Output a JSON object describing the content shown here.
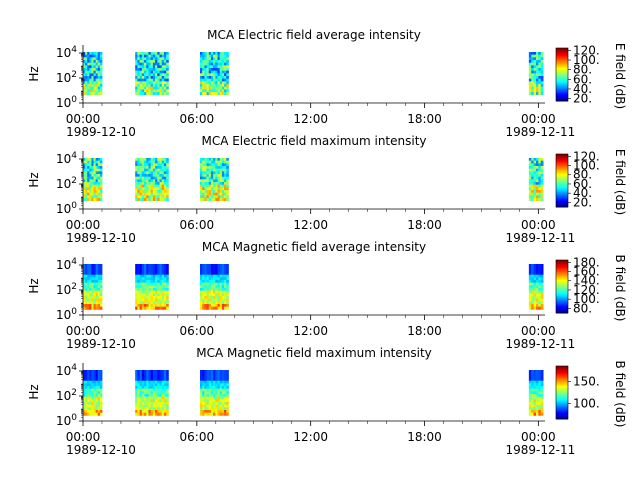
{
  "chart_data": [
    {
      "type": "heatmap",
      "title": "MCA  Electric field average intensity",
      "ylabel": "Hz",
      "colorbar_label": "E field (dB)",
      "y_scale": "log",
      "ylim": [
        1,
        30000
      ],
      "y_ticks": [
        "10^0",
        "10^2",
        "10^4"
      ],
      "clim": [
        15,
        125
      ],
      "colorbar_ticks": [
        20,
        40,
        60,
        80,
        100,
        120
      ],
      "colorbar_tick_labels": [
        "20.",
        "40.",
        "60.",
        "80.",
        "100.",
        "120."
      ],
      "x_ticks": [
        "00:00",
        "06:00",
        "12:00",
        "18:00",
        "00:00"
      ],
      "x_date_labels": [
        "1989-12-10",
        "1989-12-11"
      ],
      "blocks": [
        {
          "start": "00:00",
          "end": "01:00",
          "palette": "e_avg"
        },
        {
          "start": "02:45",
          "end": "04:30",
          "palette": "e_avg"
        },
        {
          "start": "06:10",
          "end": "07:40",
          "palette": "e_avg"
        },
        {
          "start": "23:30",
          "end": "24:15",
          "palette": "e_avg"
        }
      ]
    },
    {
      "type": "heatmap",
      "title": "MCA  Electric field maximum intensity",
      "ylabel": "Hz",
      "colorbar_label": "E field (dB)",
      "y_scale": "log",
      "ylim": [
        1,
        30000
      ],
      "y_ticks": [
        "10^0",
        "10^2",
        "10^4"
      ],
      "clim": [
        10,
        125
      ],
      "colorbar_ticks": [
        20,
        40,
        60,
        80,
        100,
        120
      ],
      "colorbar_tick_labels": [
        "20.",
        "40.",
        "60.",
        "80.",
        "100.",
        "120."
      ],
      "x_ticks": [
        "00:00",
        "06:00",
        "12:00",
        "18:00",
        "00:00"
      ],
      "x_date_labels": [
        "1989-12-10",
        "1989-12-11"
      ],
      "blocks": [
        {
          "start": "00:00",
          "end": "01:00",
          "palette": "e_max"
        },
        {
          "start": "02:45",
          "end": "04:30",
          "palette": "e_max"
        },
        {
          "start": "06:10",
          "end": "07:40",
          "palette": "e_max"
        },
        {
          "start": "23:30",
          "end": "24:15",
          "palette": "e_max"
        }
      ]
    },
    {
      "type": "heatmap",
      "title": "MCA  Magnetic field average intensity",
      "ylabel": "Hz",
      "colorbar_label": "B field (dB)",
      "y_scale": "log",
      "ylim": [
        1,
        30000
      ],
      "y_ticks": [
        "10^0",
        "10^2",
        "10^4"
      ],
      "clim": [
        70,
        185
      ],
      "colorbar_ticks": [
        80,
        100,
        120,
        140,
        160,
        180
      ],
      "colorbar_tick_labels": [
        "80.",
        "100.",
        "120.",
        "140.",
        "160.",
        "180."
      ],
      "x_ticks": [
        "00:00",
        "06:00",
        "12:00",
        "18:00",
        "00:00"
      ],
      "x_date_labels": [
        "1989-12-10",
        "1989-12-11"
      ],
      "blocks": [
        {
          "start": "00:00",
          "end": "01:00",
          "palette": "b"
        },
        {
          "start": "02:45",
          "end": "04:30",
          "palette": "b"
        },
        {
          "start": "06:10",
          "end": "07:40",
          "palette": "b"
        },
        {
          "start": "23:30",
          "end": "24:15",
          "palette": "b"
        }
      ]
    },
    {
      "type": "heatmap",
      "title": "MCA  Magnetic field maximum intensity",
      "ylabel": "Hz",
      "colorbar_label": "B field (dB)",
      "y_scale": "log",
      "ylim": [
        1,
        30000
      ],
      "y_ticks": [
        "10^0",
        "10^2",
        "10^4"
      ],
      "clim": [
        65,
        185
      ],
      "colorbar_ticks": [
        100,
        150
      ],
      "colorbar_tick_labels": [
        "100.",
        "150."
      ],
      "x_ticks": [
        "00:00",
        "06:00",
        "12:00",
        "18:00",
        "00:00"
      ],
      "x_date_labels": [
        "1989-12-10",
        "1989-12-11"
      ],
      "blocks": [
        {
          "start": "00:00",
          "end": "01:00",
          "palette": "b"
        },
        {
          "start": "02:45",
          "end": "04:30",
          "palette": "b"
        },
        {
          "start": "06:10",
          "end": "07:40",
          "palette": "b"
        },
        {
          "start": "23:30",
          "end": "24:15",
          "palette": "b"
        }
      ]
    }
  ]
}
